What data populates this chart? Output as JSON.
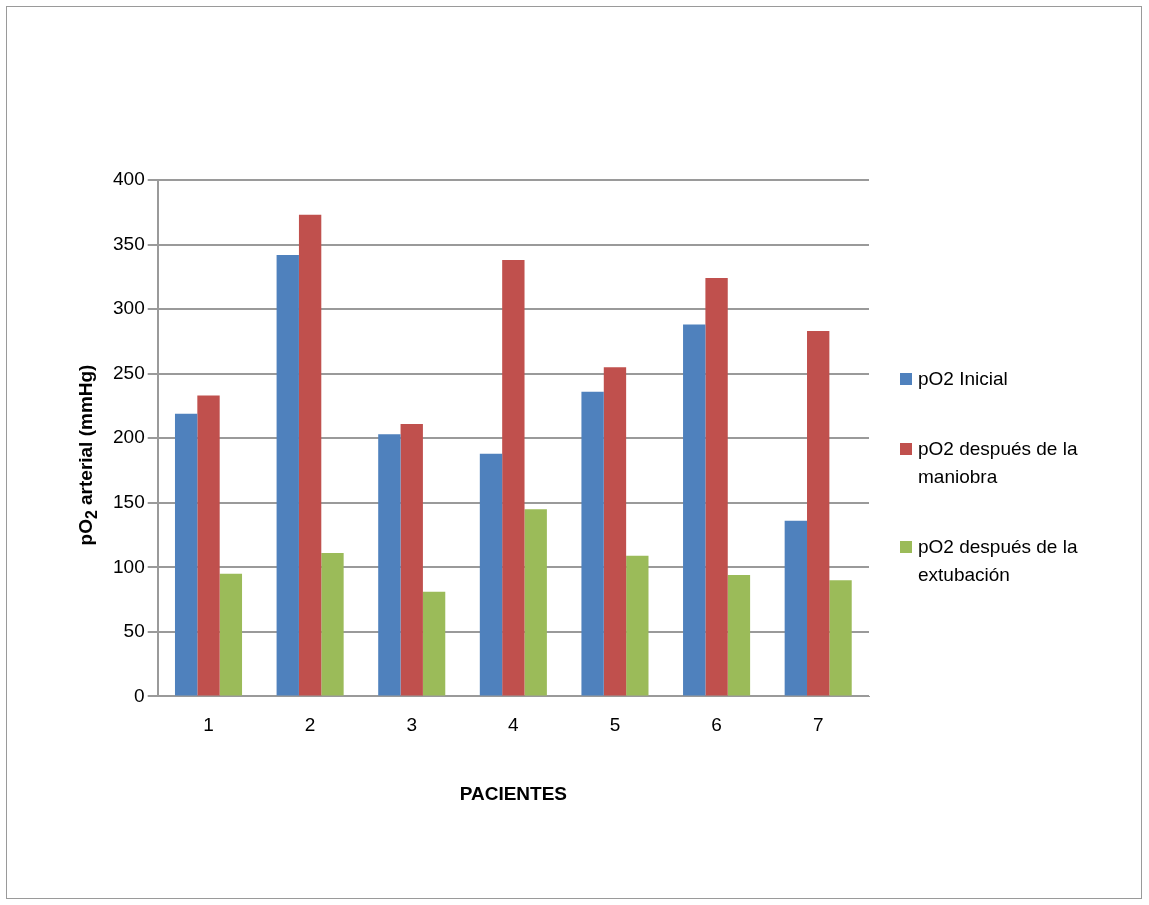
{
  "chart_data": {
    "type": "bar",
    "xlabel": "PACIENTES",
    "ylabel": "pO$_{2}$ arterial (mmHg)",
    "categories": [
      "1",
      "2",
      "3",
      "4",
      "5",
      "6",
      "7"
    ],
    "series": [
      {
        "name": "pO2 Inicial",
        "color": "#4f81bd",
        "values": [
          219,
          342,
          203,
          188,
          236,
          288,
          136
        ]
      },
      {
        "name": "pO2 después de la maniobra",
        "color": "#c0504d",
        "values": [
          233,
          373,
          211,
          338,
          255,
          324,
          283
        ]
      },
      {
        "name": "pO2 después de la extubación",
        "color": "#9bbb59",
        "values": [
          95,
          111,
          81,
          145,
          109,
          94,
          90
        ]
      }
    ],
    "ylim": [
      0,
      400
    ],
    "yticks": [
      0,
      50,
      100,
      150,
      200,
      250,
      300,
      350,
      400
    ],
    "grid": "y",
    "legend": "right"
  }
}
